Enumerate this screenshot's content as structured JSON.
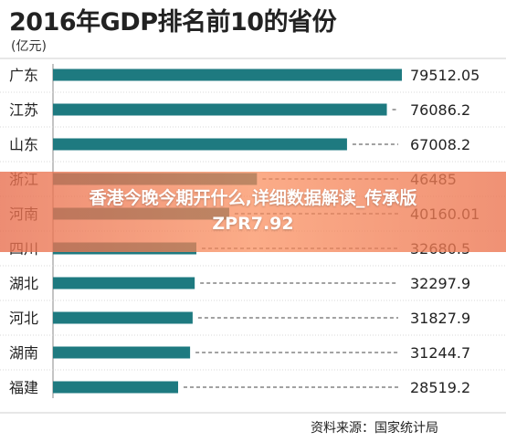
{
  "chart_data": {
    "type": "bar",
    "orientation": "horizontal",
    "title": "2016年GDP排名前10的省份",
    "unit": "(亿元)",
    "source": "资料来源：国家统计局",
    "categories": [
      "广东",
      "江苏",
      "山东",
      "浙江",
      "河南",
      "四川",
      "湖北",
      "河北",
      "湖南",
      "福建"
    ],
    "values": [
      79512.05,
      76086.2,
      67008.2,
      46485,
      40160.01,
      32680.5,
      32297.9,
      31827.9,
      31244.7,
      28519.2
    ],
    "value_labels": [
      "79512.05",
      "76086.2",
      "67008.2",
      "46485",
      "40160.01",
      "32680.5",
      "32297.9",
      "31827.9",
      "31244.7",
      "28519.2"
    ],
    "xlim": [
      0,
      79512.05
    ],
    "bar_color": "#1e7a80",
    "leader_lines": "dashed",
    "grid": false
  },
  "overlay": {
    "line1": "香港今晚今期开什么,详细数据解读_传承版",
    "line2": "ZPR7.92"
  }
}
